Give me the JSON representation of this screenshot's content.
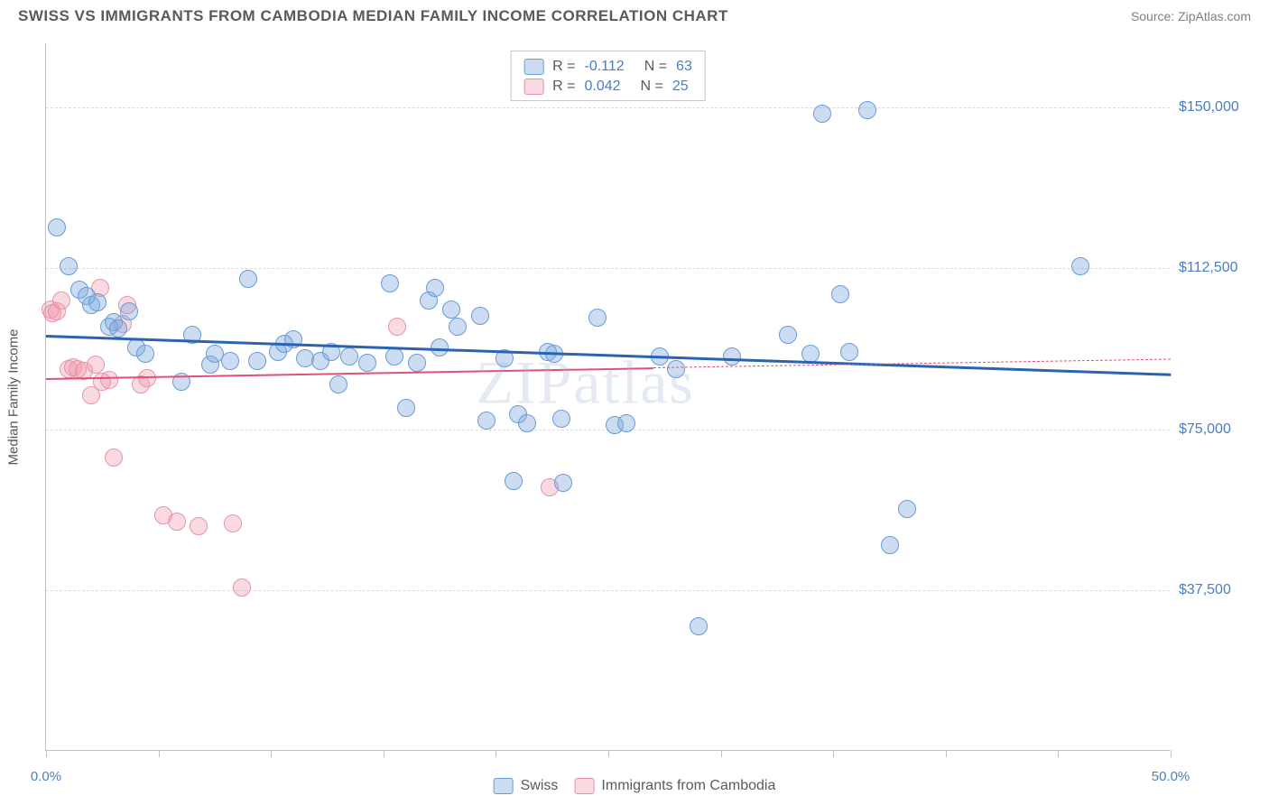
{
  "title": "SWISS VS IMMIGRANTS FROM CAMBODIA MEDIAN FAMILY INCOME CORRELATION CHART",
  "source": "Source: ZipAtlas.com",
  "watermark": "ZIPatlas",
  "y_axis_title": "Median Family Income",
  "chart": {
    "type": "scatter",
    "xlim": [
      0,
      50
    ],
    "ylim": [
      0,
      165000
    ],
    "x_ticks": [
      0,
      5,
      10,
      15,
      20,
      25,
      30,
      35,
      40,
      45,
      50
    ],
    "x_tick_labels": {
      "0": "0.0%",
      "50": "50.0%"
    },
    "y_gridlines": [
      37500,
      75000,
      112500,
      150000
    ],
    "y_tick_labels": {
      "37500": "$37,500",
      "75000": "$75,000",
      "112500": "$112,500",
      "150000": "$150,000"
    },
    "background_color": "#ffffff",
    "grid_color": "#dcdcdc",
    "axis_color": "#c0c0c0",
    "marker_radius": 10,
    "marker_stroke_width": 1.5,
    "series": [
      {
        "name": "Swiss",
        "fill": "rgba(120,165,220,0.38)",
        "stroke": "#6a9bd8",
        "trend_color": "#2a63b0",
        "trend_width": 3,
        "R": "-0.112",
        "N": "63",
        "trend": {
          "x1": 0,
          "y1": 97000,
          "x2": 50,
          "y2": 88000
        },
        "dash": null,
        "points": [
          [
            0.5,
            122000
          ],
          [
            1,
            113000
          ],
          [
            1.5,
            107500
          ],
          [
            1.8,
            106000
          ],
          [
            2,
            104000
          ],
          [
            2.3,
            104500
          ],
          [
            2.8,
            99000
          ],
          [
            3,
            100000
          ],
          [
            3.2,
            98500
          ],
          [
            3.7,
            102500
          ],
          [
            4,
            94000
          ],
          [
            4.4,
            92500
          ],
          [
            6,
            86000
          ],
          [
            6.5,
            97000
          ],
          [
            7.3,
            90000
          ],
          [
            7.5,
            92500
          ],
          [
            8.2,
            91000
          ],
          [
            9.0,
            110000
          ],
          [
            9.4,
            91000
          ],
          [
            10.3,
            93000
          ],
          [
            10.6,
            95000
          ],
          [
            11,
            96000
          ],
          [
            11.5,
            91500
          ],
          [
            12.2,
            91000
          ],
          [
            12.7,
            93000
          ],
          [
            13,
            85500
          ],
          [
            13.5,
            92000
          ],
          [
            14.3,
            90500
          ],
          [
            15.3,
            109000
          ],
          [
            15.5,
            92000
          ],
          [
            16,
            80000
          ],
          [
            16.5,
            90500
          ],
          [
            17,
            105000
          ],
          [
            17.3,
            108000
          ],
          [
            17.5,
            94000
          ],
          [
            18,
            103000
          ],
          [
            18.3,
            99000
          ],
          [
            19.3,
            101500
          ],
          [
            19.6,
            77000
          ],
          [
            20.4,
            91500
          ],
          [
            20.8,
            63000
          ],
          [
            21,
            78500
          ],
          [
            21.4,
            76500
          ],
          [
            22.3,
            93000
          ],
          [
            22.6,
            92500
          ],
          [
            22.9,
            77500
          ],
          [
            23,
            62500
          ],
          [
            24.5,
            101000
          ],
          [
            25.3,
            76000
          ],
          [
            25.8,
            76500
          ],
          [
            27.3,
            92000
          ],
          [
            28,
            89000
          ],
          [
            29,
            29000
          ],
          [
            30.5,
            92000
          ],
          [
            33,
            97000
          ],
          [
            34,
            92500
          ],
          [
            34.5,
            148500
          ],
          [
            35.3,
            106500
          ],
          [
            35.7,
            93000
          ],
          [
            36.5,
            149500
          ],
          [
            37.5,
            48000
          ],
          [
            38.3,
            56500
          ],
          [
            46,
            113000
          ]
        ]
      },
      {
        "name": "Immigrants from Cambodia",
        "fill": "rgba(240,150,170,0.35)",
        "stroke": "#e794aa",
        "trend_color": "#e05078",
        "trend_width": 2,
        "R": "0.042",
        "N": "25",
        "trend": {
          "x1": 0,
          "y1": 87000,
          "x2": 27,
          "y2": 89500
        },
        "dash": {
          "x1": 27,
          "y1": 89500,
          "x2": 50,
          "y2": 91500
        },
        "points": [
          [
            0.2,
            103000
          ],
          [
            0.3,
            102000
          ],
          [
            0.5,
            102500
          ],
          [
            0.7,
            105000
          ],
          [
            1,
            89000
          ],
          [
            1.2,
            89500
          ],
          [
            1.4,
            89000
          ],
          [
            1.7,
            88500
          ],
          [
            2,
            83000
          ],
          [
            2.2,
            90000
          ],
          [
            2.4,
            108000
          ],
          [
            2.5,
            86000
          ],
          [
            2.8,
            86500
          ],
          [
            3,
            68500
          ],
          [
            3.4,
            99500
          ],
          [
            3.6,
            104000
          ],
          [
            4.2,
            85500
          ],
          [
            4.5,
            87000
          ],
          [
            5.2,
            55000
          ],
          [
            5.8,
            53500
          ],
          [
            6.8,
            52500
          ],
          [
            8.3,
            53000
          ],
          [
            8.7,
            38000
          ],
          [
            15.6,
            99000
          ],
          [
            22.4,
            61500
          ]
        ]
      }
    ]
  },
  "legend_top_rows": [
    {
      "swatch": 0,
      "R": "-0.112",
      "N": "63"
    },
    {
      "swatch": 1,
      "R": "0.042",
      "N": "25"
    }
  ],
  "legend_bottom": [
    {
      "swatch": 0,
      "label": "Swiss"
    },
    {
      "swatch": 1,
      "label": "Immigrants from Cambodia"
    }
  ],
  "text_colors": {
    "title": "#5a5a5a",
    "source": "#808080",
    "axis_value": "#4a7ec2",
    "axis_title": "#555555"
  }
}
